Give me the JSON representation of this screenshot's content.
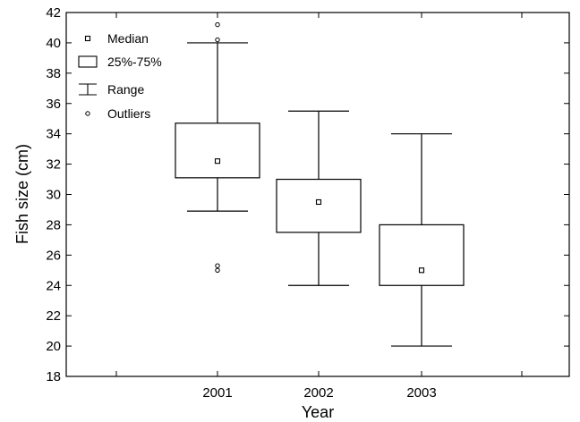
{
  "chart_data": {
    "type": "box",
    "categories": [
      "2001",
      "2002",
      "2003"
    ],
    "xlabel": "Year",
    "ylabel": "Fish size (cm)",
    "ylim": [
      18,
      42
    ],
    "yticks": [
      18,
      20,
      22,
      24,
      26,
      28,
      30,
      32,
      34,
      36,
      38,
      40,
      42
    ],
    "grid": false,
    "legend_position": "top-left",
    "legend": [
      {
        "label": "Median",
        "marker": "square"
      },
      {
        "label": "25%-75%",
        "marker": "box"
      },
      {
        "label": "Range",
        "marker": "whisker"
      },
      {
        "label": "Outliers",
        "marker": "circle"
      }
    ],
    "boxes": [
      {
        "category": "2001",
        "min": 28.9,
        "q1": 31.1,
        "median": 32.2,
        "q3": 34.7,
        "max": 40.0,
        "outliers": [
          25.0,
          25.3,
          40.2,
          41.2
        ]
      },
      {
        "category": "2002",
        "min": 24.0,
        "q1": 27.5,
        "median": 29.5,
        "q3": 31.0,
        "max": 35.5,
        "outliers": []
      },
      {
        "category": "2003",
        "min": 20.0,
        "q1": 24.0,
        "median": 25.0,
        "q3": 28.0,
        "max": 34.0,
        "outliers": []
      }
    ]
  }
}
